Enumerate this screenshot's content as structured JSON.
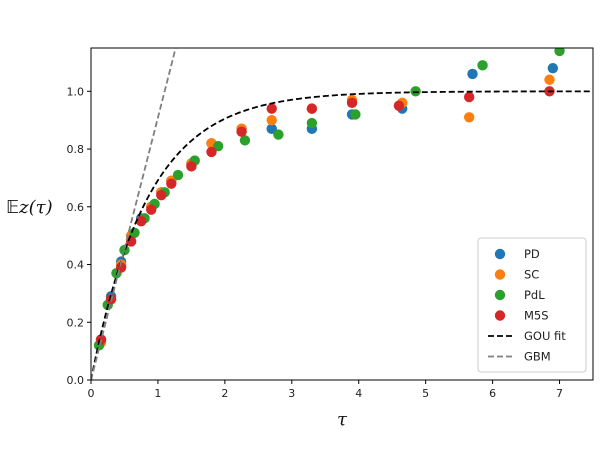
{
  "chart_data": {
    "type": "scatter",
    "xlabel": "τ",
    "ylabel_prefix": "𝔼",
    "ylabel_main": "z(τ)",
    "xlim": [
      0,
      7.5
    ],
    "ylim": [
      0,
      1.15
    ],
    "xticks": [
      0,
      1,
      2,
      3,
      4,
      5,
      6,
      7
    ],
    "yticks": [
      0.0,
      0.2,
      0.4,
      0.6,
      0.8,
      1.0
    ],
    "xtick_labels": [
      "0",
      "1",
      "2",
      "3",
      "4",
      "5",
      "6",
      "7"
    ],
    "ytick_labels": [
      "0.0",
      "0.2",
      "0.4",
      "0.6",
      "0.8",
      "1.0"
    ],
    "grid": false,
    "legend_position": "bottom-right",
    "series": [
      {
        "name": "PD",
        "color": "#1f77b4",
        "points": [
          [
            0.15,
            0.14
          ],
          [
            0.3,
            0.29
          ],
          [
            0.45,
            0.41
          ],
          [
            0.6,
            0.5
          ],
          [
            0.75,
            0.56
          ],
          [
            0.9,
            0.6
          ],
          [
            1.05,
            0.65
          ],
          [
            1.2,
            0.69
          ],
          [
            1.5,
            0.75
          ],
          [
            1.8,
            0.82
          ],
          [
            2.25,
            0.87
          ],
          [
            2.7,
            0.87
          ],
          [
            3.3,
            0.87
          ],
          [
            3.9,
            0.92
          ],
          [
            4.65,
            0.94
          ],
          [
            5.7,
            1.06
          ],
          [
            6.9,
            1.08
          ]
        ]
      },
      {
        "name": "SC",
        "color": "#ff7f0e",
        "points": [
          [
            0.15,
            0.13
          ],
          [
            0.3,
            0.28
          ],
          [
            0.45,
            0.4
          ],
          [
            0.6,
            0.5
          ],
          [
            0.75,
            0.55
          ],
          [
            0.9,
            0.6
          ],
          [
            1.05,
            0.65
          ],
          [
            1.2,
            0.69
          ],
          [
            1.5,
            0.75
          ],
          [
            1.8,
            0.82
          ],
          [
            2.25,
            0.87
          ],
          [
            2.7,
            0.9
          ],
          [
            3.3,
            0.94
          ],
          [
            3.9,
            0.97
          ],
          [
            4.65,
            0.96
          ],
          [
            5.65,
            0.91
          ],
          [
            6.85,
            1.04
          ]
        ]
      },
      {
        "name": "PdL",
        "color": "#2ca02c",
        "points": [
          [
            0.12,
            0.12
          ],
          [
            0.25,
            0.26
          ],
          [
            0.38,
            0.37
          ],
          [
            0.5,
            0.45
          ],
          [
            0.65,
            0.51
          ],
          [
            0.8,
            0.56
          ],
          [
            0.95,
            0.61
          ],
          [
            1.1,
            0.65
          ],
          [
            1.3,
            0.71
          ],
          [
            1.55,
            0.76
          ],
          [
            1.9,
            0.81
          ],
          [
            2.3,
            0.83
          ],
          [
            2.8,
            0.85
          ],
          [
            3.3,
            0.89
          ],
          [
            3.95,
            0.92
          ],
          [
            4.85,
            1.0
          ],
          [
            5.85,
            1.09
          ],
          [
            7.0,
            1.14
          ]
        ]
      },
      {
        "name": "M5S",
        "color": "#d62728",
        "points": [
          [
            0.15,
            0.14
          ],
          [
            0.3,
            0.28
          ],
          [
            0.45,
            0.39
          ],
          [
            0.6,
            0.48
          ],
          [
            0.75,
            0.55
          ],
          [
            0.9,
            0.59
          ],
          [
            1.05,
            0.64
          ],
          [
            1.2,
            0.68
          ],
          [
            1.5,
            0.74
          ],
          [
            1.8,
            0.79
          ],
          [
            2.25,
            0.86
          ],
          [
            2.7,
            0.94
          ],
          [
            3.3,
            0.94
          ],
          [
            3.9,
            0.96
          ],
          [
            4.6,
            0.95
          ],
          [
            5.65,
            0.98
          ],
          [
            6.85,
            1.0
          ]
        ]
      }
    ],
    "lines": [
      {
        "name": "GOU fit",
        "color": "#000000",
        "style": "dashed",
        "formula": "1 - exp(-x/0.85)"
      },
      {
        "name": "GBM",
        "color": "#7f7f7f",
        "style": "dashed",
        "formula": "x / 1.1"
      }
    ]
  }
}
